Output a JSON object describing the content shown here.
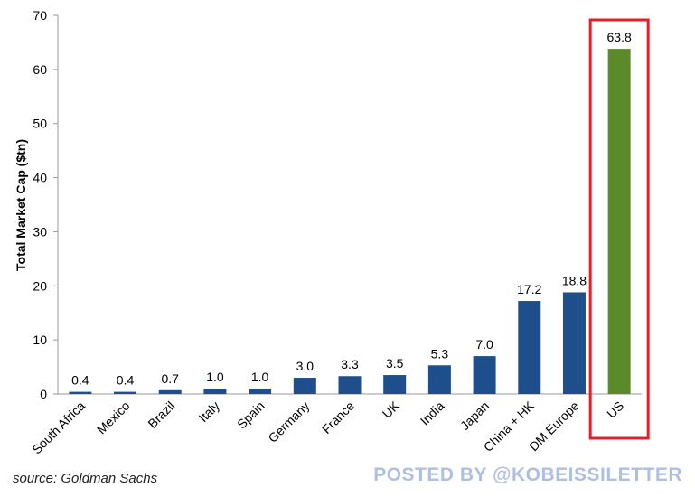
{
  "chart_data": {
    "type": "bar",
    "ylabel": "Total Market Cap ($tn)",
    "xlabel": "",
    "ylim": [
      0,
      70
    ],
    "yticks": [
      0,
      10,
      20,
      30,
      40,
      50,
      60,
      70
    ],
    "categories": [
      "South Africa",
      "Mexico",
      "Brazil",
      "Italy",
      "Spain",
      "Germany",
      "France",
      "UK",
      "India",
      "Japan",
      "China + HK",
      "DM Europe",
      "US"
    ],
    "values": [
      0.4,
      0.4,
      0.7,
      1.0,
      1.0,
      3.0,
      3.3,
      3.5,
      5.3,
      7.0,
      17.2,
      18.8,
      63.8
    ],
    "value_labels": [
      "0.4",
      "0.4",
      "0.7",
      "1.0",
      "1.0",
      "3.0",
      "3.3",
      "3.5",
      "5.3",
      "7.0",
      "17.2",
      "18.8",
      "63.8"
    ],
    "highlighted_category": "US",
    "grid": false,
    "colors": {
      "bar": "#1f4e8c",
      "highlight_bar": "#5a8a2a",
      "highlight_box": "#e0202a"
    }
  },
  "footer": {
    "source": "source: Goldman Sachs",
    "watermark": "POSTED BY @KOBEISSILETTER"
  }
}
